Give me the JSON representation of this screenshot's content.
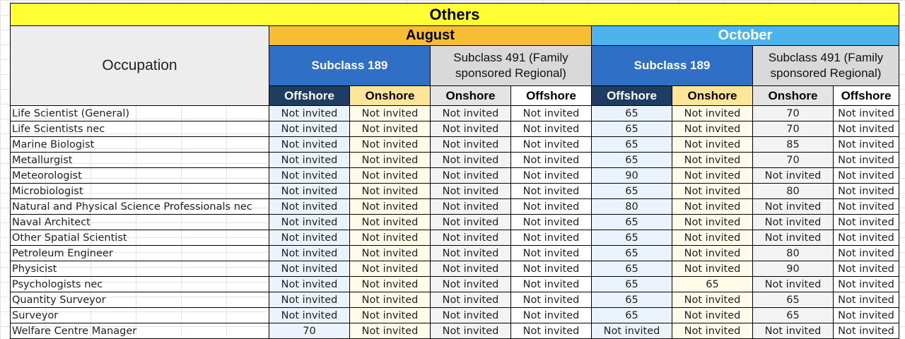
{
  "title": "Others",
  "months": {
    "august": "August",
    "october": "October"
  },
  "occupation_header": "Occupation",
  "subclasses": {
    "s189": "Subclass 189",
    "s491": "Subclass 491 (Family sponsored Regional)"
  },
  "locations": {
    "offshore": "Offshore",
    "onshore": "Onshore"
  },
  "rows": [
    {
      "occupation": "Life Scientist (General)",
      "values": [
        "Not invited",
        "Not invited",
        "Not invited",
        "Not invited",
        "65",
        "Not invited",
        "70",
        "Not invited"
      ]
    },
    {
      "occupation": "Life Scientists nec",
      "values": [
        "Not invited",
        "Not invited",
        "Not invited",
        "Not invited",
        "65",
        "Not invited",
        "70",
        "Not invited"
      ]
    },
    {
      "occupation": "Marine Biologist",
      "values": [
        "Not invited",
        "Not invited",
        "Not invited",
        "Not invited",
        "65",
        "Not invited",
        "85",
        "Not invited"
      ]
    },
    {
      "occupation": "Metallurgist",
      "values": [
        "Not invited",
        "Not invited",
        "Not invited",
        "Not invited",
        "65",
        "Not invited",
        "70",
        "Not invited"
      ]
    },
    {
      "occupation": "Meteorologist",
      "values": [
        "Not invited",
        "Not invited",
        "Not invited",
        "Not invited",
        "90",
        "Not invited",
        "Not invited",
        "Not invited"
      ]
    },
    {
      "occupation": "Microbiologist",
      "values": [
        "Not invited",
        "Not invited",
        "Not invited",
        "Not invited",
        "65",
        "Not invited",
        "80",
        "Not invited"
      ]
    },
    {
      "occupation": "Natural and Physical Science Professionals nec",
      "values": [
        "Not invited",
        "Not invited",
        "Not invited",
        "Not invited",
        "80",
        "Not invited",
        "Not invited",
        "Not invited"
      ]
    },
    {
      "occupation": "Naval Architect",
      "values": [
        "Not invited",
        "Not invited",
        "Not invited",
        "Not invited",
        "65",
        "Not invited",
        "Not invited",
        "Not invited"
      ]
    },
    {
      "occupation": "Other Spatial Scientist",
      "values": [
        "Not invited",
        "Not invited",
        "Not invited",
        "Not invited",
        "65",
        "Not invited",
        "Not invited",
        "Not invited"
      ]
    },
    {
      "occupation": "Petroleum Engineer",
      "values": [
        "Not invited",
        "Not invited",
        "Not invited",
        "Not invited",
        "65",
        "Not invited",
        "80",
        "Not invited"
      ]
    },
    {
      "occupation": "Physicist",
      "values": [
        "Not invited",
        "Not invited",
        "Not invited",
        "Not invited",
        "65",
        "Not invited",
        "90",
        "Not invited"
      ]
    },
    {
      "occupation": "Psychologists nec",
      "values": [
        "Not invited",
        "Not invited",
        "Not invited",
        "Not invited",
        "65",
        "65",
        "Not invited",
        "Not invited"
      ]
    },
    {
      "occupation": "Quantity Surveyor",
      "values": [
        "Not invited",
        "Not invited",
        "Not invited",
        "Not invited",
        "65",
        "Not invited",
        "65",
        "Not invited"
      ]
    },
    {
      "occupation": "Surveyor",
      "values": [
        "Not invited",
        "Not invited",
        "Not invited",
        "Not invited",
        "65",
        "Not invited",
        "65",
        "Not invited"
      ]
    },
    {
      "occupation": "Welfare Centre Manager",
      "values": [
        "70",
        "Not invited",
        "Not invited",
        "Not invited",
        "Not invited",
        "Not invited",
        "Not invited",
        "Not invited"
      ]
    }
  ]
}
